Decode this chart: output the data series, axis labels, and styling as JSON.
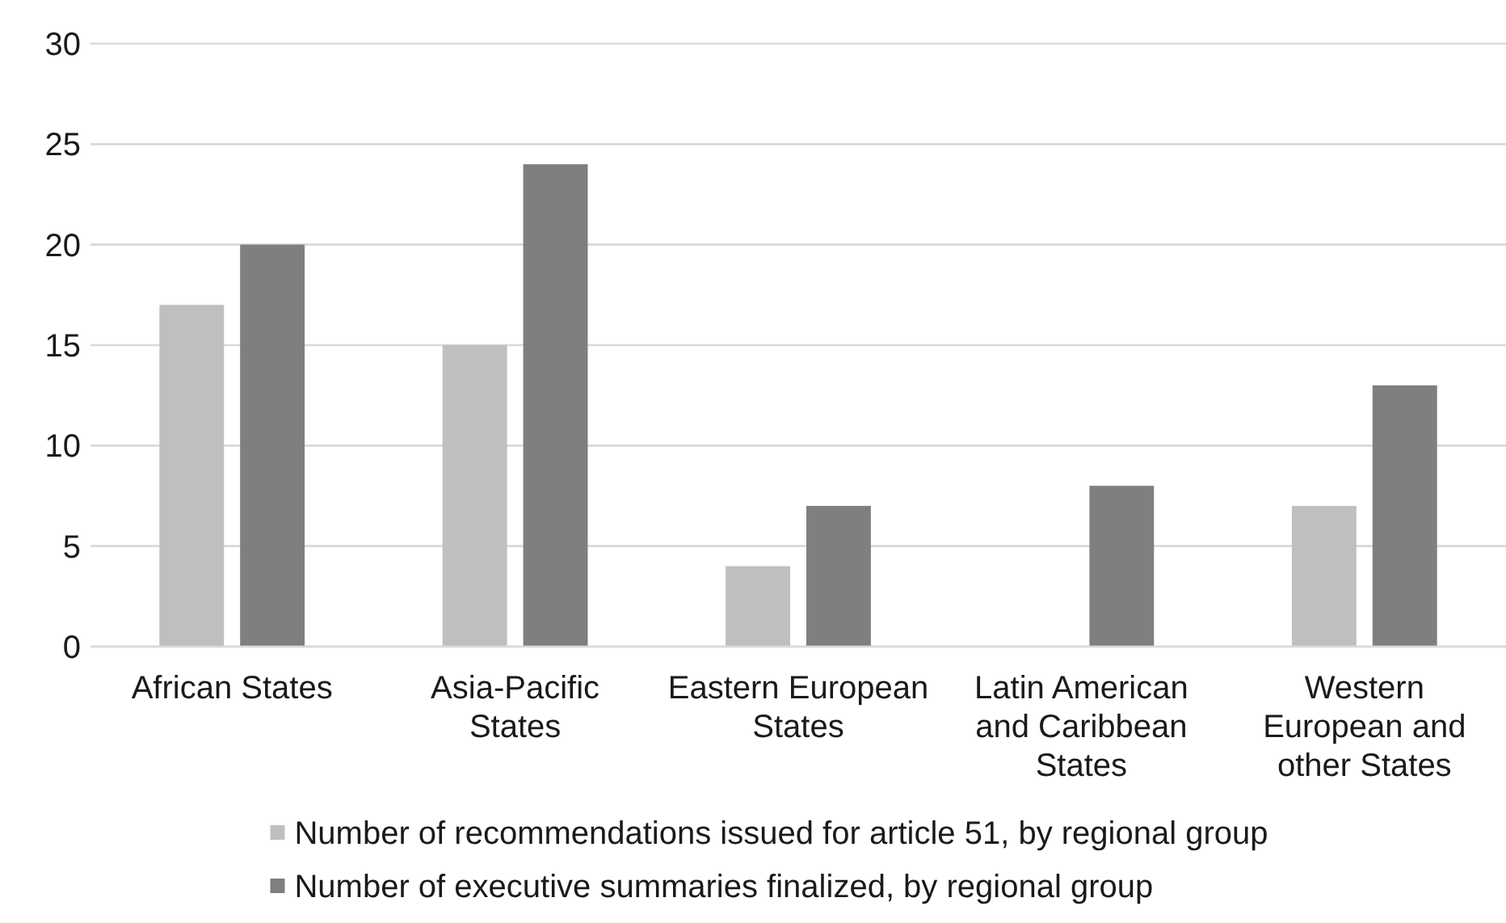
{
  "chart_data": {
    "type": "bar",
    "categories": [
      "African States",
      "Asia-Pacific States",
      "Eastern European States",
      "Latin American and Caribbean States",
      "Western European and other States"
    ],
    "series": [
      {
        "name": "Number of recommendations issued for article 51, by regional group",
        "color": "#bfbfbf",
        "values": [
          17,
          15,
          4,
          null,
          7
        ]
      },
      {
        "name": "Number of executive summaries finalized, by regional group",
        "color": "#7f7f7f",
        "values": [
          20,
          24,
          7,
          8,
          13
        ]
      }
    ],
    "ylim": [
      0,
      30
    ],
    "yticks": [
      0,
      5,
      10,
      15,
      20,
      25,
      30
    ],
    "grid": "y",
    "legend": "bottom"
  }
}
